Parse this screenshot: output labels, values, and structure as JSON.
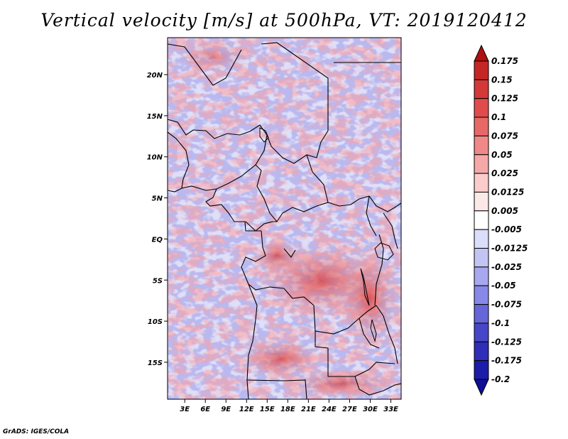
{
  "title": "Vertical velocity [m/s] at 500hPa, VT: 2019120412",
  "footer": "GrADS: IGES/COLA",
  "map": {
    "lat_labels": [
      "20N",
      "15N",
      "10N",
      "5N",
      "EQ",
      "5S",
      "10S",
      "15S"
    ],
    "lon_labels": [
      "3E",
      "6E",
      "9E",
      "12E",
      "15E",
      "18E",
      "21E",
      "24E",
      "27E",
      "30E",
      "33E"
    ],
    "lat_values": [
      20,
      15,
      10,
      5,
      0,
      -5,
      -10,
      -15
    ],
    "lon_values": [
      3,
      6,
      9,
      12,
      15,
      18,
      21,
      24,
      27,
      30,
      33
    ],
    "lat_range": [
      -19.5,
      24.5
    ],
    "lon_range": [
      0.5,
      34.5
    ]
  },
  "colorbar": {
    "levels": [
      "0.175",
      "0.15",
      "0.125",
      "0.1",
      "0.075",
      "0.05",
      "0.025",
      "0.0125",
      "0.005",
      "-0.005",
      "-0.0125",
      "-0.025",
      "-0.05",
      "-0.075",
      "-0.1",
      "-0.125",
      "-0.175",
      "-0.2"
    ],
    "colors": [
      "#b01010",
      "#c42626",
      "#d43838",
      "#e04c4c",
      "#e86868",
      "#f08888",
      "#f6a8a8",
      "#fbcccc",
      "#fde8e8",
      "#ffffff",
      "#dcdcfb",
      "#c4c4f4",
      "#a8a8f0",
      "#8888e8",
      "#6666d8",
      "#4646c8",
      "#2e2eb8",
      "#1c1caa",
      "#0e0e96"
    ]
  }
}
